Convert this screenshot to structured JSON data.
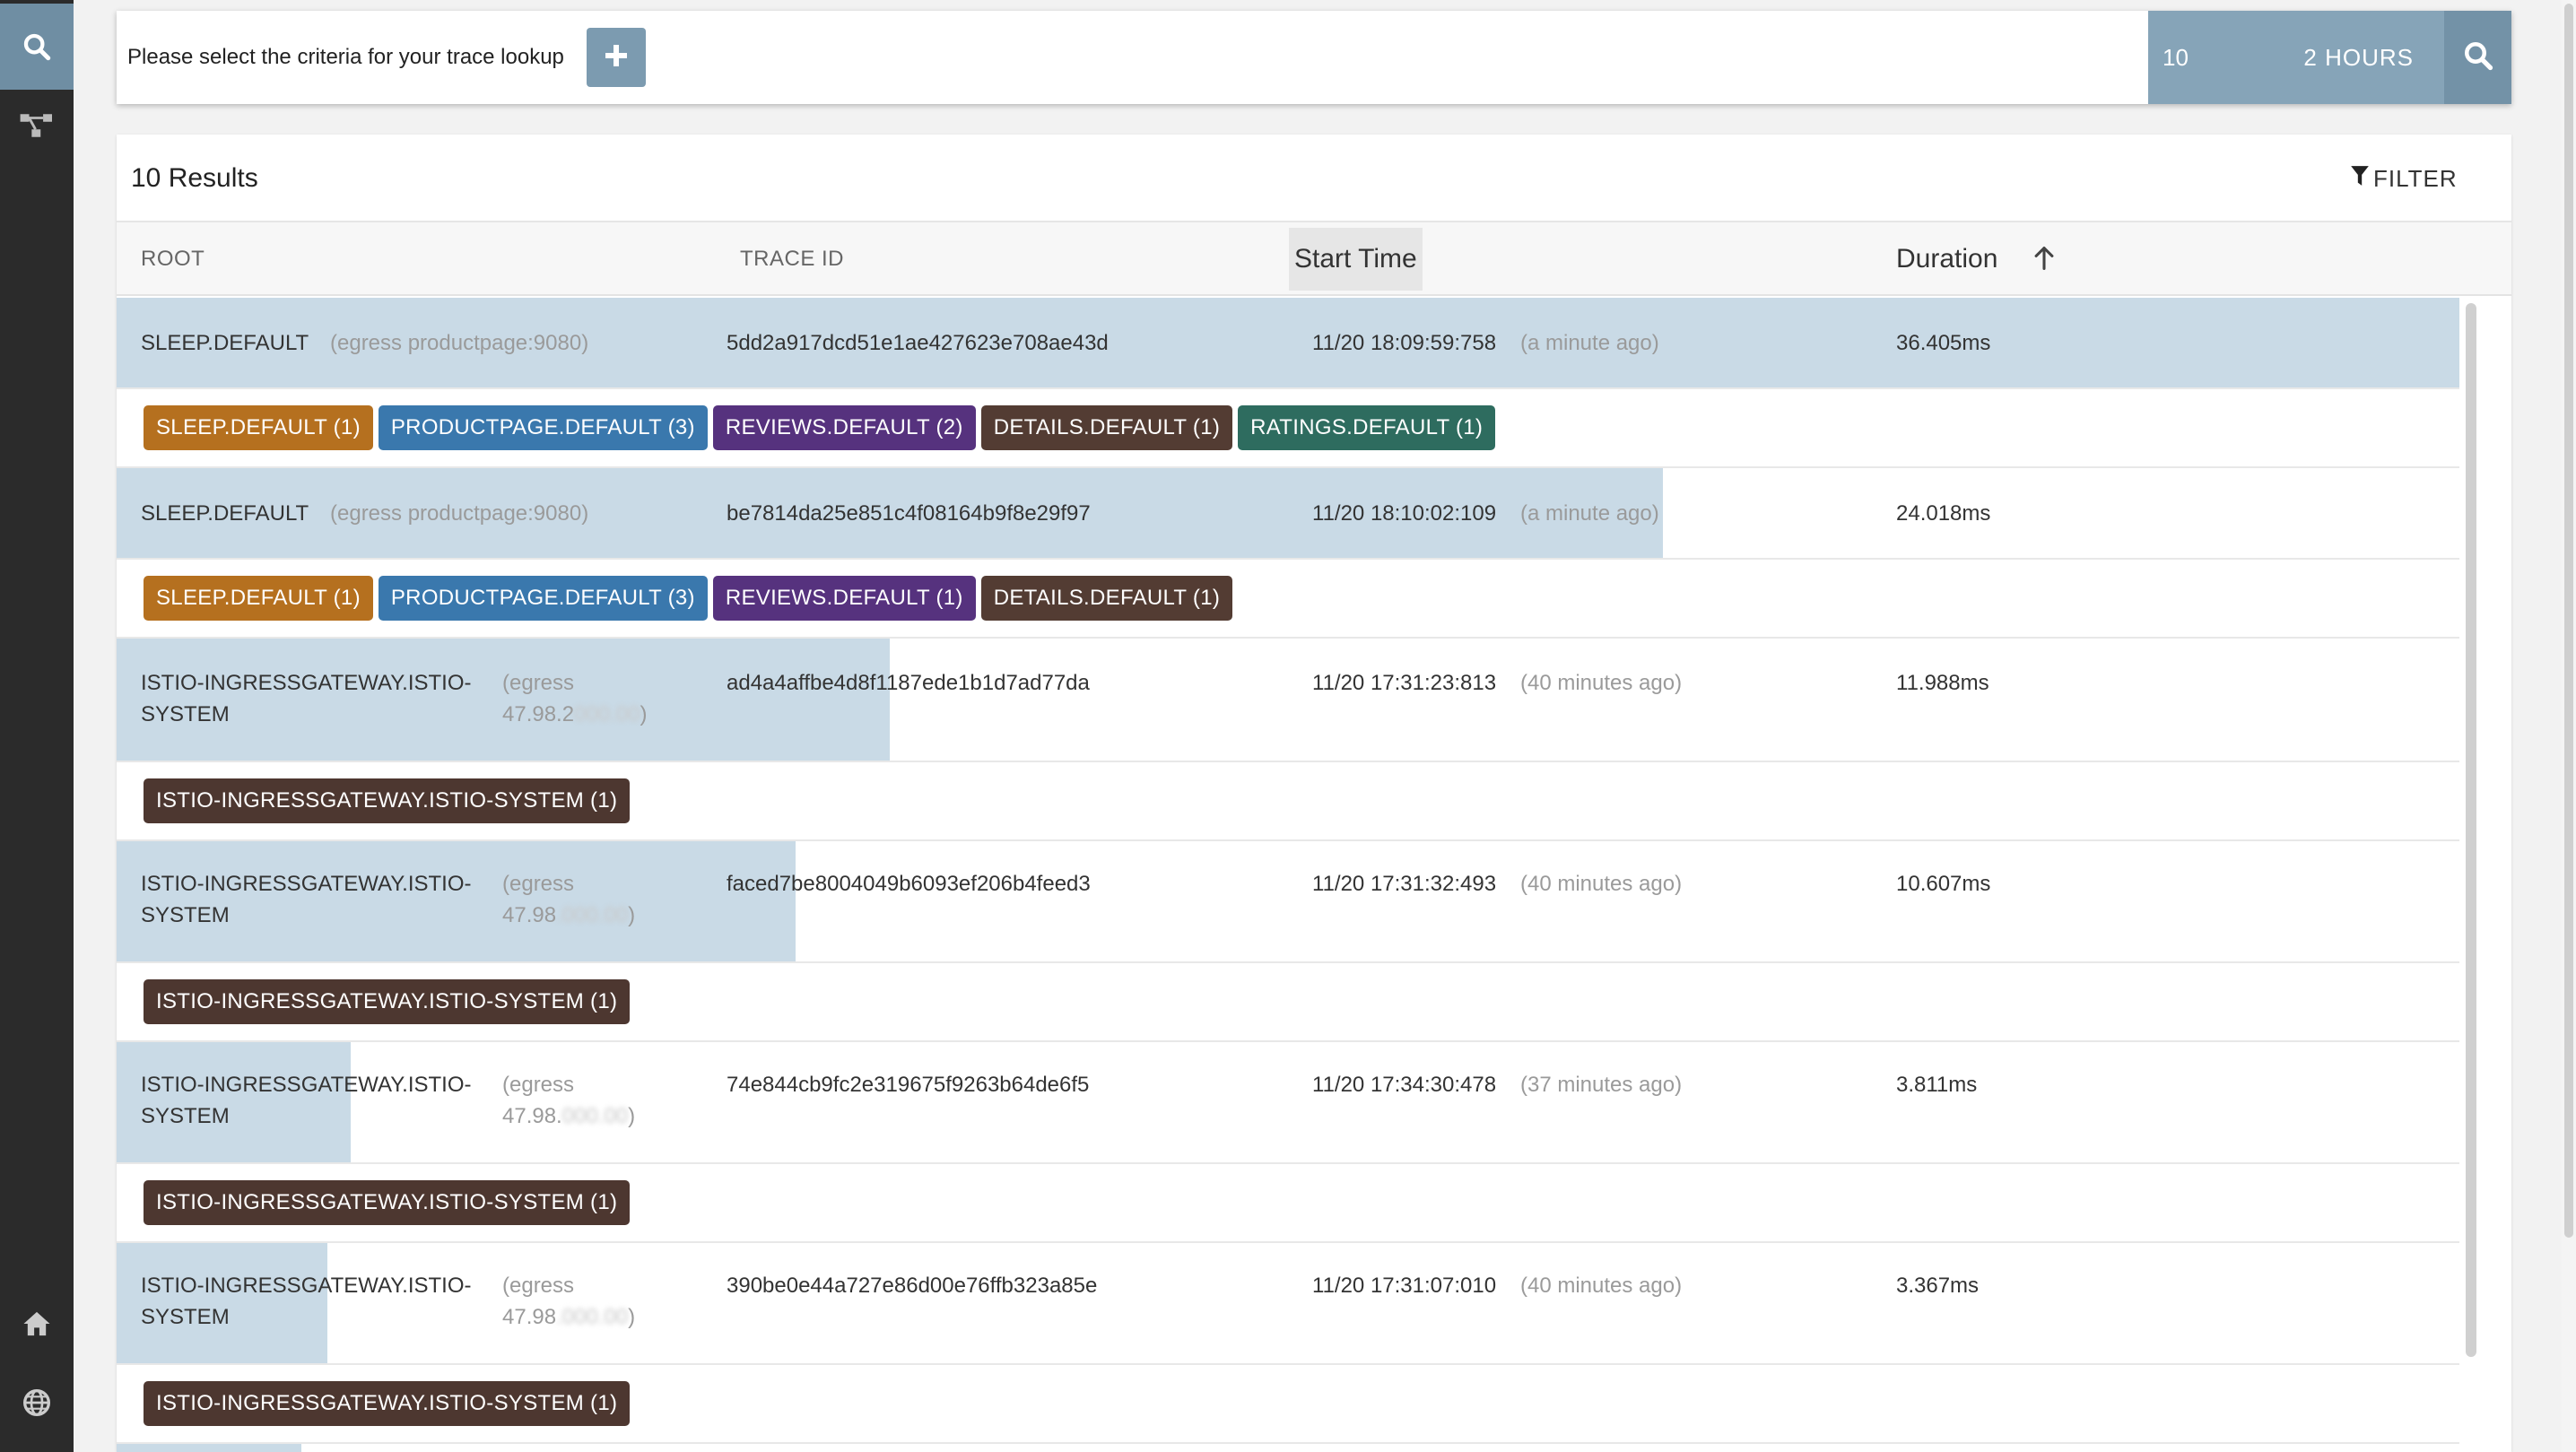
{
  "search": {
    "prompt": "Please select the criteria for your trace lookup",
    "limit": "10",
    "range": "2 HOURS"
  },
  "results": {
    "count_label": "10 Results",
    "filter_label": "FILTER"
  },
  "columns": {
    "root": "ROOT",
    "trace_id": "TRACE ID",
    "start_time": "Start Time",
    "duration": "Duration"
  },
  "traces": [
    {
      "root_service": "SLEEP.DEFAULT",
      "root_detail": "(egress productpage:9080)",
      "trace_id": "5dd2a917dcd51e1ae427623e708ae43d",
      "start": "11/20 18:09:59:758",
      "ago": "(a minute ago)",
      "duration": "36.405ms",
      "bar_fraction": 1.0,
      "tags": [
        {
          "label": "SLEEP.DEFAULT (1)",
          "kind": "sleep"
        },
        {
          "label": "PRODUCTPAGE.DEFAULT (3)",
          "kind": "product"
        },
        {
          "label": "REVIEWS.DEFAULT (2)",
          "kind": "reviews"
        },
        {
          "label": "DETAILS.DEFAULT (1)",
          "kind": "details"
        },
        {
          "label": "RATINGS.DEFAULT (1)",
          "kind": "ratings"
        }
      ]
    },
    {
      "root_service": "SLEEP.DEFAULT",
      "root_detail": "(egress productpage:9080)",
      "trace_id": "be7814da25e851c4f08164b9f8e29f97",
      "start": "11/20 18:10:02:109",
      "ago": "(a minute ago)",
      "duration": "24.018ms",
      "bar_fraction": 0.66,
      "tags": [
        {
          "label": "SLEEP.DEFAULT (1)",
          "kind": "sleep"
        },
        {
          "label": "PRODUCTPAGE.DEFAULT (3)",
          "kind": "product"
        },
        {
          "label": "REVIEWS.DEFAULT (1)",
          "kind": "reviews"
        },
        {
          "label": "DETAILS.DEFAULT (1)",
          "kind": "details"
        }
      ]
    },
    {
      "root_service_1": "ISTIO-INGRESSGATEWAY.ISTIO-",
      "root_service_2": "SYSTEM",
      "root_detail_1": "(egress",
      "root_detail_2": "47.98.2",
      "root_detail_3": ")",
      "trace_id": "ad4a4affbe4d8f1187ede1b1d7ad77da",
      "start": "11/20 17:31:23:813",
      "ago": "(40 minutes ago)",
      "duration": "11.988ms",
      "bar_fraction": 0.33,
      "tags": [
        {
          "label": "ISTIO-INGRESSGATEWAY.ISTIO-SYSTEM (1)",
          "kind": "istio"
        }
      ]
    },
    {
      "root_service_1": "ISTIO-INGRESSGATEWAY.ISTIO-",
      "root_service_2": "SYSTEM",
      "root_detail_1": "(egress",
      "root_detail_2": "47.98",
      "root_detail_3": ")",
      "trace_id": "faced7be8004049b6093ef206b4feed3",
      "start": "11/20 17:31:32:493",
      "ago": "(40 minutes ago)",
      "duration": "10.607ms",
      "bar_fraction": 0.29,
      "tags": [
        {
          "label": "ISTIO-INGRESSGATEWAY.ISTIO-SYSTEM (1)",
          "kind": "istio"
        }
      ]
    },
    {
      "root_service_1": "ISTIO-INGRESSGATEWAY.ISTIO-",
      "root_service_2": "SYSTEM",
      "root_detail_1": "(egress",
      "root_detail_2": "47.98.",
      "root_detail_3": ")",
      "trace_id": "74e844cb9fc2e319675f9263b64de6f5",
      "start": "11/20 17:34:30:478",
      "ago": "(37 minutes ago)",
      "duration": "3.811ms",
      "bar_fraction": 0.1,
      "tags": [
        {
          "label": "ISTIO-INGRESSGATEWAY.ISTIO-SYSTEM (1)",
          "kind": "istio"
        }
      ]
    },
    {
      "root_service_1": "ISTIO-INGRESSGATEWAY.ISTIO-",
      "root_service_2": "SYSTEM",
      "root_detail_1": "(egress",
      "root_detail_2": "47.98",
      "root_detail_3": ")",
      "trace_id": "390be0e44a727e86d00e76ffb323a85e",
      "start": "11/20 17:31:07:010",
      "ago": "(40 minutes ago)",
      "duration": "3.367ms",
      "bar_fraction": 0.09,
      "tags": [
        {
          "label": "ISTIO-INGRESSGATEWAY.ISTIO-SYSTEM (1)",
          "kind": "istio"
        }
      ]
    }
  ],
  "colors": {
    "sidebar": "#2b2b2b",
    "accent": "#86a4b8",
    "duration_bar": "#c9dae6"
  },
  "icons": {
    "sidebar": [
      "search-icon",
      "dependencies-icon",
      "home-icon",
      "globe-icon"
    ],
    "topbar": [
      "plus-icon",
      "search-icon"
    ],
    "header": [
      "filter-icon",
      "sort-asc-icon"
    ]
  }
}
